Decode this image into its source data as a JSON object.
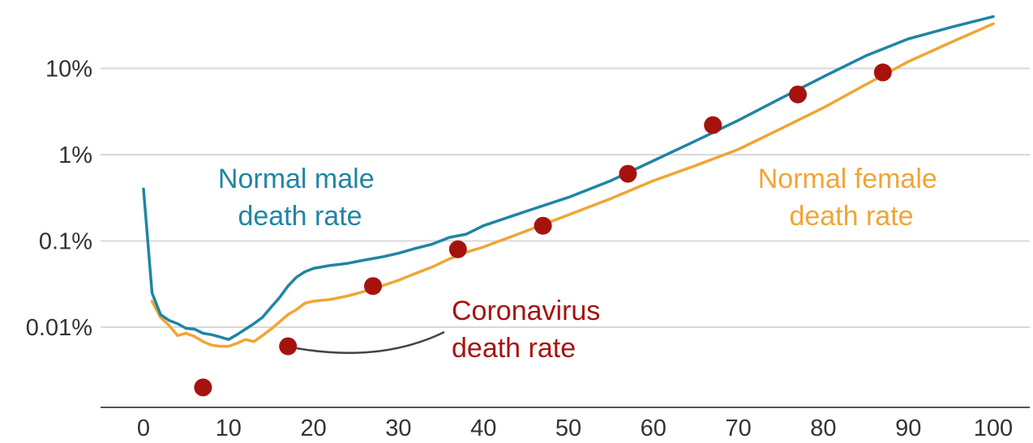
{
  "colors": {
    "male": "#1f85a3",
    "female": "#f0a535",
    "corona": "#a6130f",
    "grid": "#d9d9d9",
    "axis": "#555555",
    "connector": "#444444"
  },
  "chart_data": {
    "type": "line",
    "title": "",
    "xlabel": "",
    "ylabel": "",
    "y_scale": "log",
    "xlim": [
      0,
      100
    ],
    "ylim": [
      0.001,
      40
    ],
    "grid": true,
    "legend": "none",
    "x_ticks": [
      {
        "value": 0,
        "label": "0"
      },
      {
        "value": 10,
        "label": "10"
      },
      {
        "value": 20,
        "label": "20"
      },
      {
        "value": 30,
        "label": "30"
      },
      {
        "value": 40,
        "label": "40"
      },
      {
        "value": 50,
        "label": "50"
      },
      {
        "value": 60,
        "label": "60"
      },
      {
        "value": 70,
        "label": "70"
      },
      {
        "value": 80,
        "label": "80"
      },
      {
        "value": 90,
        "label": "90"
      },
      {
        "value": 100,
        "label": "100"
      }
    ],
    "y_ticks": [
      {
        "value": 0.01,
        "label": "0.01%"
      },
      {
        "value": 0.1,
        "label": "0.1%"
      },
      {
        "value": 1,
        "label": "1%"
      },
      {
        "value": 10,
        "label": "10%"
      }
    ],
    "series": [
      {
        "key": "male",
        "annotation_lines": [
          "Normal male",
          "death rate"
        ],
        "x": [
          0,
          1,
          2,
          3,
          4,
          5,
          6,
          7,
          8,
          9,
          10,
          11,
          12,
          13,
          14,
          15,
          16,
          17,
          18,
          19,
          20,
          22,
          24,
          26,
          28,
          30,
          32,
          34,
          36,
          38,
          40,
          45,
          50,
          55,
          60,
          65,
          70,
          75,
          80,
          85,
          90,
          95,
          100
        ],
        "values": [
          0.4,
          0.025,
          0.014,
          0.012,
          0.011,
          0.0097,
          0.0095,
          0.0085,
          0.0082,
          0.0077,
          0.0072,
          0.0082,
          0.0095,
          0.011,
          0.013,
          0.017,
          0.022,
          0.03,
          0.038,
          0.044,
          0.048,
          0.052,
          0.055,
          0.06,
          0.065,
          0.072,
          0.082,
          0.092,
          0.11,
          0.12,
          0.15,
          0.22,
          0.32,
          0.5,
          0.85,
          1.45,
          2.5,
          4.5,
          8.0,
          14,
          22,
          30,
          40
        ]
      },
      {
        "key": "female",
        "annotation_lines": [
          "Normal female",
          "death rate"
        ],
        "x": [
          1,
          2,
          3,
          4,
          5,
          6,
          7,
          8,
          9,
          10,
          11,
          12,
          13,
          14,
          15,
          16,
          17,
          18,
          19,
          20,
          22,
          24,
          26,
          28,
          30,
          32,
          34,
          36,
          38,
          40,
          45,
          50,
          55,
          60,
          65,
          70,
          75,
          80,
          85,
          90,
          95,
          100
        ],
        "values": [
          0.02,
          0.013,
          0.0105,
          0.008,
          0.0085,
          0.0078,
          0.0068,
          0.0062,
          0.006,
          0.006,
          0.0065,
          0.0072,
          0.0068,
          0.008,
          0.0095,
          0.0115,
          0.014,
          0.016,
          0.019,
          0.02,
          0.021,
          0.023,
          0.026,
          0.03,
          0.035,
          0.042,
          0.05,
          0.062,
          0.074,
          0.085,
          0.13,
          0.2,
          0.31,
          0.5,
          0.75,
          1.15,
          2.0,
          3.5,
          6.5,
          12,
          20,
          33
        ]
      },
      {
        "key": "corona",
        "type": "scatter",
        "annotation_lines": [
          "Coronavirus",
          "death rate"
        ],
        "x": [
          7,
          17,
          27,
          37,
          47,
          57,
          67,
          77,
          87
        ],
        "values": [
          0.002,
          0.006,
          0.03,
          0.08,
          0.15,
          0.6,
          2.2,
          5.0,
          9.0
        ]
      }
    ]
  }
}
